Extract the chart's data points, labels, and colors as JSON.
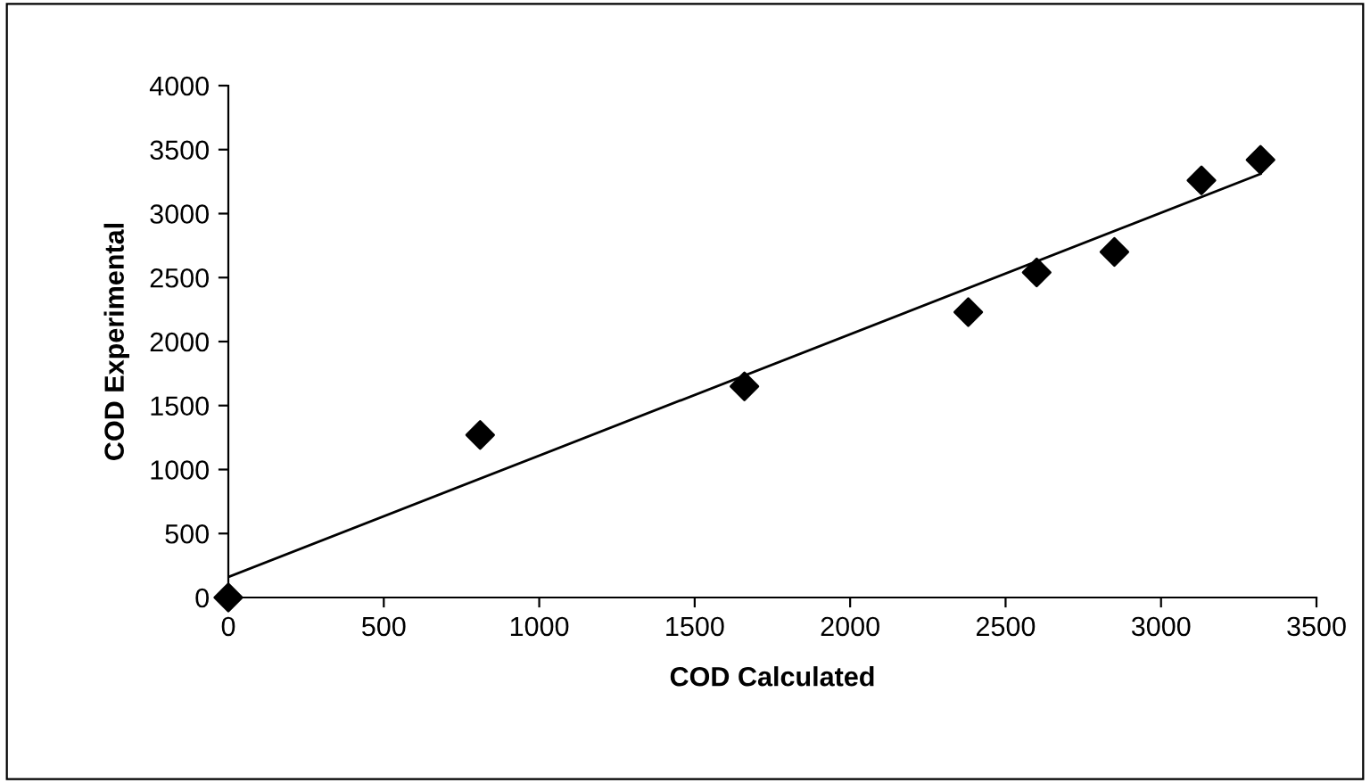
{
  "chart_data": {
    "type": "scatter",
    "xlabel": "COD Calculated",
    "ylabel": "COD Experimental",
    "series": [
      {
        "color": "#000000",
        "marker": "diamond",
        "x": [
          0,
          810,
          1660,
          2380,
          2600,
          2850,
          3130,
          3320
        ],
        "values": [
          0,
          1270,
          1650,
          2230,
          2540,
          2700,
          3260,
          3420
        ]
      },
      {
        "type": "line",
        "color": "#000000",
        "marker": "none",
        "line_style": "solid",
        "x": [
          0,
          3320
        ],
        "values": [
          160,
          3310
        ]
      }
    ],
    "xlim": [
      0,
      3500
    ],
    "xticks": [
      0,
      500,
      1000,
      1500,
      2000,
      2500,
      3000,
      3500
    ],
    "ylim": [
      0,
      4000
    ],
    "yticks": [
      0,
      500,
      1000,
      1500,
      2000,
      2500,
      3000,
      3500,
      4000
    ],
    "grid": false,
    "legend": false
  }
}
